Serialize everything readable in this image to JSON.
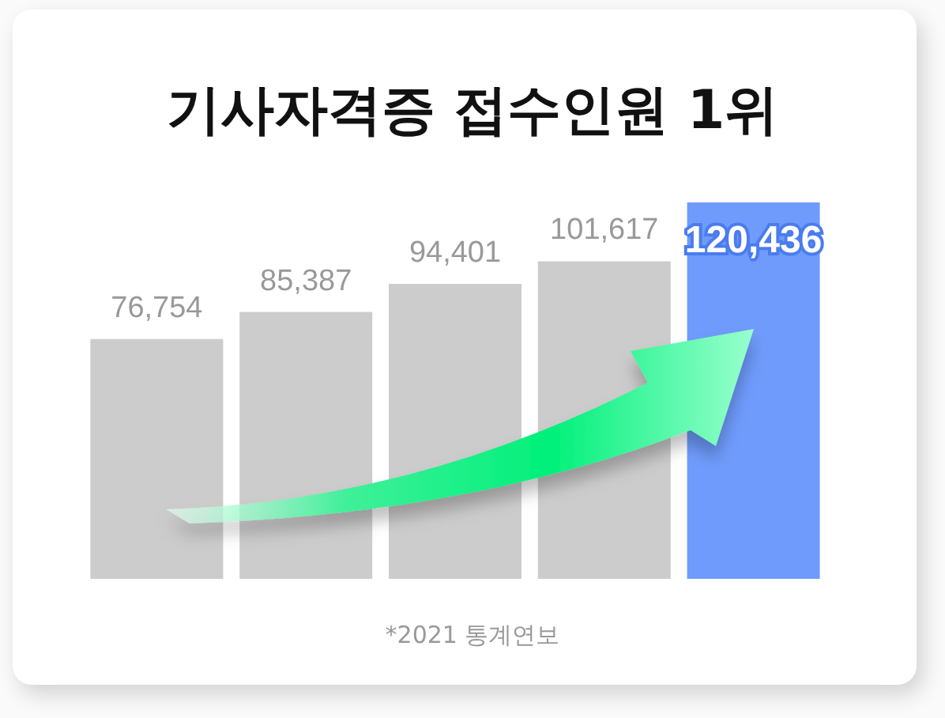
{
  "chart_data": {
    "type": "bar",
    "title": "기사자격증 접수인원 1위",
    "categories": [
      null,
      null,
      null,
      null,
      null
    ],
    "values": [
      76754,
      85387,
      94401,
      101617,
      120436
    ],
    "value_labels": [
      "76,754",
      "85,387",
      "94,401",
      "101,617",
      "120,436"
    ],
    "colors": [
      "#cccccc",
      "#cccccc",
      "#cccccc",
      "#cccccc",
      "#6f9bfc"
    ],
    "tick_labels": false,
    "annotations": [
      "*2021 통계연보"
    ]
  }
}
